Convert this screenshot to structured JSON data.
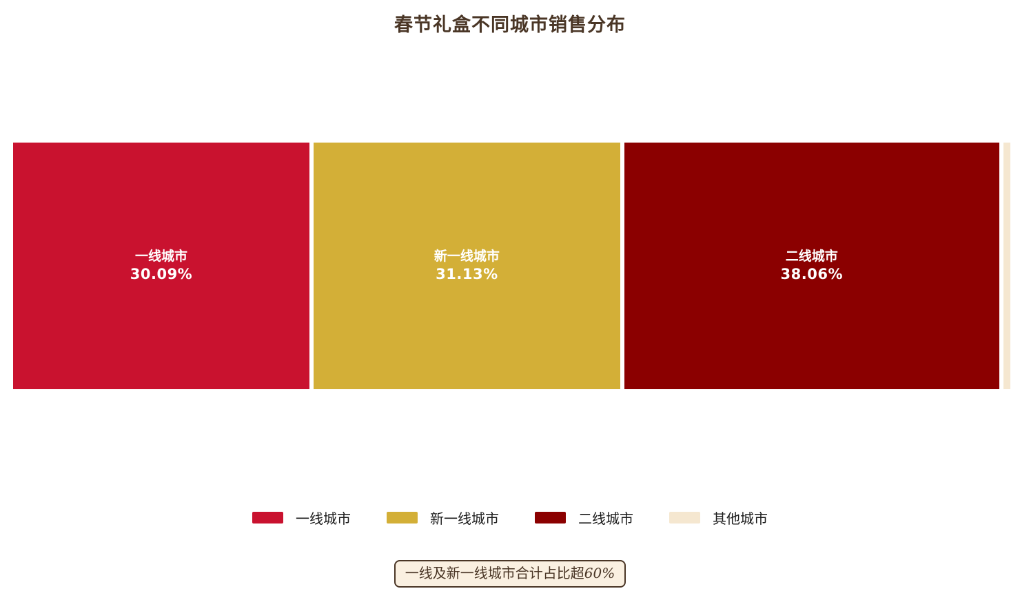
{
  "title": "春节礼盒不同城市销售分布",
  "annotation": {
    "text": "一线及新一线城市合计占比超",
    "highlight": "60%"
  },
  "colors": {
    "title_text": "#4A3626",
    "tier1": "#C9122F",
    "new_tier1": "#D3AF37",
    "tier2": "#8B0000",
    "other": "#F5E7D0",
    "annotation_bg": "#FAF0E1",
    "annotation_border": "#4A3626",
    "segment_text": "#FFFFFF",
    "legend_text": "#1C1C1C",
    "background": "#FFFFFF"
  },
  "chart_data": {
    "type": "bar",
    "variant": "horizontal-stacked-proportion",
    "title": "春节礼盒不同城市销售分布",
    "unit": "%",
    "xlim": [
      0,
      100
    ],
    "grid": false,
    "legend_position": "bottom",
    "series": [
      {
        "key": "tier-1",
        "name": "一线城市",
        "value": 30.09,
        "display": "30.09%",
        "color": "#C9122F",
        "show_label": true
      },
      {
        "key": "new-tier-1",
        "name": "新一线城市",
        "value": 31.13,
        "display": "31.13%",
        "color": "#D3AF37",
        "show_label": true
      },
      {
        "key": "tier-2",
        "name": "二线城市",
        "value": 38.06,
        "display": "38.06%",
        "color": "#8B0000",
        "show_label": true
      },
      {
        "key": "other",
        "name": "其他城市",
        "value": 0.72,
        "display": "0.72%",
        "color": "#F5E7D0",
        "show_label": false
      }
    ],
    "annotation": "一线及新一线城市合计占比超60%"
  }
}
